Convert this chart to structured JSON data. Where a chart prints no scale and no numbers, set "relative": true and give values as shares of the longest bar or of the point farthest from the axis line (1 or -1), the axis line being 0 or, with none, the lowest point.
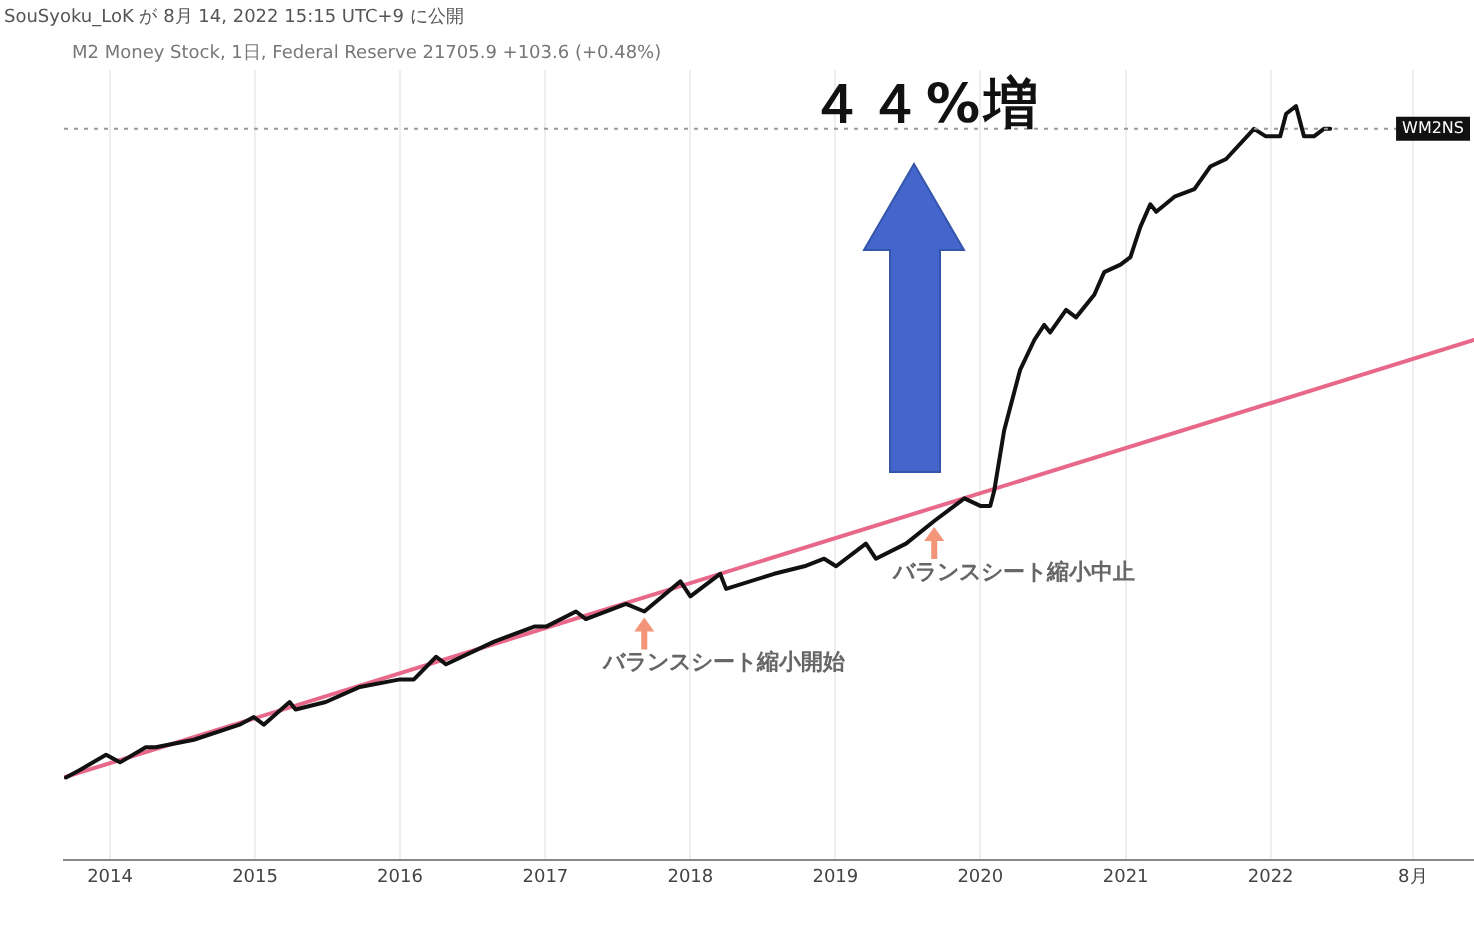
{
  "chart_data": {
    "type": "line",
    "title": "４４%増",
    "subtitle": "M2 Money Stock, 1日, Federal Reserve  21705.9  +103.6 (+0.48%)",
    "relative": true,
    "legend": false,
    "grid": "x",
    "marker": "none",
    "line_style": "solid",
    "xlim": [
      "2013-09-07",
      "2023-05-28"
    ],
    "xticks": [
      {
        "value": "2014-01-01",
        "label": "2014"
      },
      {
        "value": "2015-01-01",
        "label": "2015"
      },
      {
        "value": "2016-01-01",
        "label": "2016"
      },
      {
        "value": "2017-01-01",
        "label": "2017"
      },
      {
        "value": "2018-01-01",
        "label": "2018"
      },
      {
        "value": "2019-01-01",
        "label": "2019"
      },
      {
        "value": "2020-01-01",
        "label": "2020"
      },
      {
        "value": "2021-01-01",
        "label": "2021"
      },
      {
        "value": "2022-01-01",
        "label": "2022"
      },
      {
        "value": "2022-12-25",
        "label": "8月"
      }
    ],
    "series": [
      {
        "color": "#111111",
        "x": [
          "2013-09-12",
          "2013-10-17",
          "2013-12-22",
          "2014-01-26",
          "2014-04-01",
          "2014-04-26",
          "2014-07-31",
          "2014-11-23",
          "2014-12-29",
          "2015-01-23",
          "2015-03-29",
          "2015-04-13",
          "2015-06-28",
          "2015-09-22",
          "2016-01-01",
          "2016-02-05",
          "2016-04-01",
          "2016-04-26",
          "2016-08-25",
          "2016-12-04",
          "2017-01-03",
          "2017-03-19",
          "2017-04-13",
          "2017-07-23",
          "2017-09-07",
          "2017-12-07",
          "2018-01-01",
          "2018-03-17",
          "2018-04-01",
          "2018-07-31",
          "2018-10-15",
          "2018-12-04",
          "2019-01-03",
          "2019-03-19",
          "2019-04-13",
          "2019-06-28",
          "2019-09-07",
          "2019-11-22",
          "2020-01-01",
          "2020-01-26",
          "2020-02-05",
          "2020-03-01",
          "2020-04-10",
          "2020-05-16",
          "2020-06-10",
          "2020-06-25",
          "2020-08-04",
          "2020-08-29",
          "2020-10-14",
          "2020-11-08",
          "2020-12-19",
          "2021-01-13",
          "2021-02-07",
          "2021-03-04",
          "2021-03-19",
          "2021-05-04",
          "2021-06-23",
          "2021-08-02",
          "2021-09-11",
          "2021-11-20",
          "2021-12-20",
          "2022-01-25",
          "2022-02-09",
          "2022-03-06",
          "2022-03-26",
          "2022-04-20",
          "2022-05-15",
          "2022-05-31"
        ],
        "values": [
          0.11,
          0.12,
          0.14,
          0.13,
          0.15,
          0.15,
          0.16,
          0.18,
          0.19,
          0.18,
          0.21,
          0.2,
          0.21,
          0.23,
          0.24,
          0.24,
          0.27,
          0.26,
          0.29,
          0.31,
          0.31,
          0.33,
          0.32,
          0.34,
          0.33,
          0.37,
          0.35,
          0.38,
          0.36,
          0.38,
          0.39,
          0.4,
          0.39,
          0.42,
          0.4,
          0.42,
          0.45,
          0.48,
          0.47,
          0.47,
          0.49,
          0.57,
          0.65,
          0.69,
          0.71,
          0.7,
          0.73,
          0.72,
          0.75,
          0.78,
          0.79,
          0.8,
          0.84,
          0.87,
          0.86,
          0.88,
          0.89,
          0.92,
          0.93,
          0.97,
          0.96,
          0.96,
          0.99,
          1.0,
          0.96,
          0.96,
          0.97,
          0.97
        ]
      },
      {
        "type": "line",
        "color": "#e8688a",
        "x": [
          "2013-09-07",
          "2023-05-28"
        ],
        "values": [
          0.11,
          0.69
        ]
      }
    ],
    "ref_lines": [
      {
        "axis": "y",
        "value": 0.97,
        "label": "WM2NS",
        "color": "#999999",
        "line_style": "dotted"
      }
    ],
    "annotations": [
      "SouSyoku_LoK が 8月 14, 2022 15:15 UTC+9 に公開",
      {
        "text": "バランスシート縮小開始",
        "x": "2017-09-07",
        "y": 0.33
      },
      {
        "text": "バランスシート縮小中止",
        "x": "2019-09-07",
        "y": 0.45
      }
    ]
  }
}
